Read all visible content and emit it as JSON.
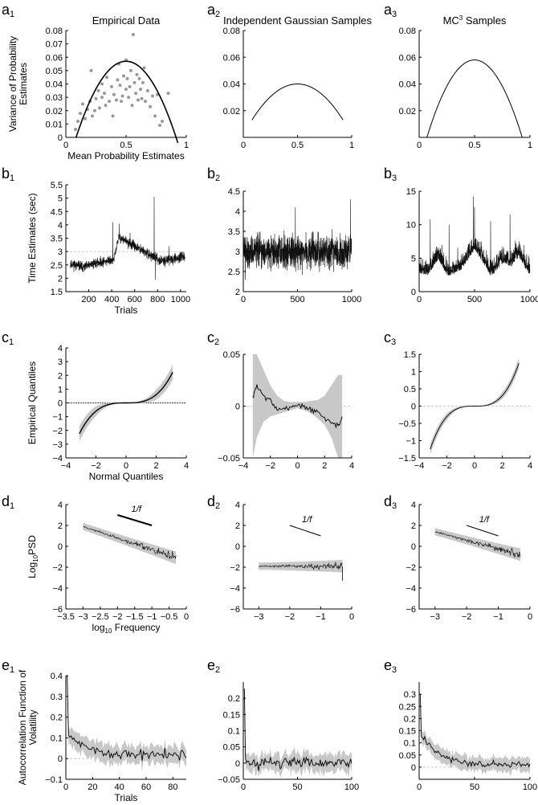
{
  "figure": "Figure panels a1-e3",
  "chart_data": [
    {
      "id": "a1",
      "type": "scatter",
      "panel_letter": "a",
      "panel_index": "1",
      "title": "Empirical Data",
      "xlabel": "Mean Probability Estimates",
      "ylabel_lines": [
        "Variance of Probability",
        "Estimates"
      ],
      "xlim": [
        0,
        1
      ],
      "ylim": [
        0,
        0.08
      ],
      "xticks": [
        0,
        0.5,
        1
      ],
      "xtick_labels": [
        "0",
        "0.5",
        "1"
      ],
      "yticks": [
        0,
        0.01,
        0.02,
        0.03,
        0.04,
        0.05,
        0.06,
        0.07,
        0.08
      ],
      "ytick_labels": [
        "0",
        "0.01",
        "0.02",
        "0.03",
        "0.04",
        "0.05",
        "0.06",
        "0.07",
        "0.08"
      ],
      "points": [
        [
          0.08,
          0.006
        ],
        [
          0.1,
          0.012
        ],
        [
          0.12,
          0.018
        ],
        [
          0.14,
          0.025
        ],
        [
          0.16,
          0.014
        ],
        [
          0.18,
          0.021
        ],
        [
          0.2,
          0.027
        ],
        [
          0.21,
          0.05
        ],
        [
          0.22,
          0.016
        ],
        [
          0.24,
          0.02
        ],
        [
          0.25,
          0.029
        ],
        [
          0.27,
          0.035
        ],
        [
          0.28,
          0.022
        ],
        [
          0.3,
          0.03
        ],
        [
          0.3,
          0.04
        ],
        [
          0.32,
          0.033
        ],
        [
          0.33,
          0.024
        ],
        [
          0.34,
          0.045
        ],
        [
          0.36,
          0.027
        ],
        [
          0.38,
          0.038
        ],
        [
          0.39,
          0.016
        ],
        [
          0.4,
          0.032
        ],
        [
          0.42,
          0.028
        ],
        [
          0.43,
          0.043
        ],
        [
          0.44,
          0.055
        ],
        [
          0.45,
          0.039
        ],
        [
          0.46,
          0.027
        ],
        [
          0.47,
          0.031
        ],
        [
          0.48,
          0.046
        ],
        [
          0.5,
          0.036
        ],
        [
          0.5,
          0.058
        ],
        [
          0.51,
          0.044
        ],
        [
          0.52,
          0.03
        ],
        [
          0.53,
          0.038
        ],
        [
          0.54,
          0.05
        ],
        [
          0.55,
          0.024
        ],
        [
          0.56,
          0.077
        ],
        [
          0.57,
          0.041
        ],
        [
          0.58,
          0.033
        ],
        [
          0.59,
          0.047
        ],
        [
          0.6,
          0.028
        ],
        [
          0.61,
          0.044
        ],
        [
          0.62,
          0.036
        ],
        [
          0.63,
          0.029
        ],
        [
          0.64,
          0.041
        ],
        [
          0.65,
          0.052
        ],
        [
          0.66,
          0.027
        ],
        [
          0.68,
          0.035
        ],
        [
          0.7,
          0.023
        ],
        [
          0.72,
          0.031
        ],
        [
          0.74,
          0.016
        ],
        [
          0.76,
          0.032
        ],
        [
          0.78,
          0.009
        ],
        [
          0.8,
          0.012
        ],
        [
          0.85,
          0.033
        ]
      ],
      "curve": {
        "kind": "parabola",
        "x0": 0.085,
        "x1": 0.93,
        "peak_x": 0.5,
        "peak_y": 0.057
      }
    },
    {
      "id": "a2",
      "type": "line",
      "panel_letter": "a",
      "panel_index": "2",
      "title": "Independent Gaussian Samples",
      "xlim": [
        0,
        1
      ],
      "ylim": [
        0,
        0.08
      ],
      "xticks": [
        0,
        0.5,
        1
      ],
      "xtick_labels": [
        "0",
        "0.5",
        "1"
      ],
      "yticks": [
        0.02,
        0.04,
        0.06,
        0.08
      ],
      "ytick_labels": [
        "0.02",
        "0.04",
        "0.06",
        "0.08"
      ],
      "curve": {
        "kind": "parabola",
        "x0": 0.08,
        "x1": 0.92,
        "peak_x": 0.5,
        "peak_y": 0.04,
        "end_y": 0.013
      }
    },
    {
      "id": "a3",
      "type": "line",
      "panel_letter": "a",
      "panel_index": "3",
      "title_parts": [
        "MC",
        "3",
        " Samples"
      ],
      "xlim": [
        0,
        1
      ],
      "ylim": [
        0,
        0.08
      ],
      "xticks": [
        0,
        0.5,
        1
      ],
      "xtick_labels": [
        "0",
        "0.5",
        "1"
      ],
      "yticks": [
        0.02,
        0.04,
        0.06,
        0.08
      ],
      "ytick_labels": [
        "0.02",
        "0.04",
        "0.06",
        "0.08"
      ],
      "curve": {
        "kind": "parabola",
        "x0": 0.07,
        "x1": 0.93,
        "peak_x": 0.5,
        "peak_y": 0.058,
        "end_y": 0.0
      }
    },
    {
      "id": "b1",
      "type": "line",
      "panel_letter": "b",
      "panel_index": "1",
      "xlabel": "Trials",
      "ylabel": "Time Estimates (sec)",
      "xlim": [
        0,
        1050
      ],
      "ylim": [
        1.5,
        5.5
      ],
      "xticks": [
        200,
        400,
        600,
        800,
        1000
      ],
      "xtick_labels": [
        "200",
        "400",
        "600",
        "800",
        "1000"
      ],
      "yticks": [
        1.5,
        2,
        2.5,
        3,
        3.5,
        4,
        4.5,
        5,
        5.5
      ],
      "ytick_labels": [
        "1.5",
        "2",
        "2.5",
        "3",
        "3.5",
        "4",
        "4.5",
        "5",
        "5.5"
      ],
      "series": {
        "n": 1000,
        "segments": [
          [
            0,
            2.55
          ],
          [
            120,
            2.4
          ],
          [
            200,
            2.55
          ],
          [
            380,
            2.7
          ],
          [
            420,
            3.55
          ],
          [
            520,
            3.3
          ],
          [
            600,
            3.1
          ],
          [
            700,
            2.85
          ],
          [
            800,
            2.65
          ],
          [
            1000,
            2.8
          ]
        ],
        "noise": 0.13,
        "seed": 11,
        "spikes": [
          [
            410,
            4.1
          ],
          [
            465,
            4.05
          ],
          [
            560,
            3.7
          ],
          [
            770,
            5.05
          ],
          [
            780,
            1.95
          ],
          [
            900,
            3.2
          ]
        ]
      },
      "reference_line": 3.0
    },
    {
      "id": "b2",
      "type": "line",
      "panel_letter": "b",
      "panel_index": "2",
      "xlim": [
        0,
        1000
      ],
      "ylim": [
        2,
        4.5
      ],
      "xticks": [
        0,
        500,
        1000
      ],
      "xtick_labels": [
        "0",
        "500",
        "1000"
      ],
      "yticks": [
        2,
        2.5,
        3,
        3.5,
        4,
        4.5
      ],
      "ytick_labels": [
        "2",
        "2.5",
        "3",
        "3.5",
        "4",
        "4.5"
      ],
      "series": {
        "n": 1000,
        "segments": [
          [
            0,
            3.0
          ],
          [
            1000,
            3.0
          ]
        ],
        "noise": 0.3,
        "seed": 22,
        "spikes": [
          [
            480,
            4.1
          ],
          [
            990,
            4.3
          ],
          [
            20,
            2.3
          ]
        ]
      }
    },
    {
      "id": "b3",
      "type": "line",
      "panel_letter": "b",
      "panel_index": "3",
      "xlim": [
        0,
        1000
      ],
      "ylim": [
        0,
        15
      ],
      "xticks": [
        0,
        500,
        1000
      ],
      "xtick_labels": [
        "0",
        "500",
        "1000"
      ],
      "yticks": [
        0,
        5,
        10,
        15
      ],
      "ytick_labels": [
        "0",
        "5",
        "10",
        "15"
      ],
      "series": {
        "n": 1000,
        "segments": [
          [
            0,
            3.5
          ],
          [
            80,
            3.2
          ],
          [
            170,
            5.5
          ],
          [
            260,
            3.0
          ],
          [
            380,
            4.0
          ],
          [
            500,
            7.0
          ],
          [
            560,
            5.5
          ],
          [
            650,
            3.0
          ],
          [
            750,
            5.0
          ],
          [
            830,
            4.5
          ],
          [
            900,
            6.0
          ],
          [
            1000,
            3.0
          ]
        ],
        "noise": 1.3,
        "seed": 33,
        "spikes": [
          [
            490,
            14.2
          ],
          [
            500,
            12.6
          ],
          [
            100,
            10.8
          ],
          [
            820,
            11.5
          ],
          [
            270,
            10.0
          ],
          [
            645,
            10.5
          ]
        ]
      }
    },
    {
      "id": "c1",
      "type": "area",
      "panel_letter": "c",
      "panel_index": "1",
      "xlabel": "Normal Quantiles",
      "ylabel": "Empirical Quantiles",
      "xlim": [
        -4,
        4
      ],
      "ylim": [
        -4,
        4
      ],
      "xticks": [
        -4,
        -2,
        0,
        2,
        4
      ],
      "xtick_labels": [
        "−4",
        "−2",
        "0",
        "2",
        "4"
      ],
      "yticks": [
        -4,
        -3,
        -2,
        -1,
        0,
        1,
        2,
        3,
        4
      ],
      "ytick_labels": [
        "−4",
        "−3",
        "−2",
        "−1",
        "0",
        "1",
        "2",
        "3",
        "4"
      ],
      "curve": {
        "kind": "cubic",
        "x0": -3.1,
        "x1": 3.1,
        "a": 0.075,
        "band": 0.45
      },
      "reference_line": 0
    },
    {
      "id": "c2",
      "type": "area",
      "panel_letter": "c",
      "panel_index": "2",
      "xlim": [
        -4,
        4
      ],
      "ylim": [
        -0.05,
        0.05
      ],
      "xticks": [
        -4,
        -2,
        0,
        2,
        4
      ],
      "xtick_labels": [
        "−4",
        "−2",
        "0",
        "2",
        "4"
      ],
      "yticks": [
        -0.05,
        0,
        0.05
      ],
      "ytick_labels": [
        "−0.05",
        "0",
        "0.05"
      ],
      "curve": {
        "kind": "points",
        "x": [
          -3.3,
          -3.0,
          -2.5,
          -2.0,
          -1.5,
          -1.0,
          -0.5,
          0,
          0.5,
          1.0,
          1.5,
          2.0,
          2.5,
          3.0,
          3.3
        ],
        "y": [
          0.008,
          0.02,
          0.01,
          0.005,
          -0.003,
          -0.004,
          0.0,
          0.001,
          0.0,
          -0.004,
          -0.006,
          -0.012,
          -0.015,
          -0.02,
          -0.01
        ],
        "band_lo": [
          -0.05,
          -0.03,
          -0.015,
          -0.01,
          -0.008,
          -0.006,
          -0.004,
          -0.002,
          -0.004,
          -0.007,
          -0.012,
          -0.018,
          -0.03,
          -0.05,
          -0.05
        ],
        "band_hi": [
          0.05,
          0.05,
          0.035,
          0.02,
          0.01,
          0.005,
          0.004,
          0.004,
          0.004,
          0.005,
          0.006,
          0.01,
          0.02,
          0.03,
          0.03
        ]
      },
      "reference_line": 0
    },
    {
      "id": "c3",
      "type": "area",
      "panel_letter": "c",
      "panel_index": "3",
      "xlim": [
        -4,
        4
      ],
      "ylim": [
        -1.5,
        1.5
      ],
      "xticks": [
        -4,
        -2,
        0,
        2,
        4
      ],
      "xtick_labels": [
        "−4",
        "−2",
        "0",
        "2",
        "4"
      ],
      "yticks": [
        -1.5,
        -1,
        -0.5,
        0,
        0.5,
        1,
        1.5
      ],
      "ytick_labels": [
        "−1.5",
        "−1",
        "−0.5",
        "0",
        "0.5",
        "1",
        "1.5"
      ],
      "curve": {
        "kind": "cubic",
        "x0": -3.2,
        "x1": 3.2,
        "a": 0.038,
        "band": 0.12
      },
      "reference_line": 0
    },
    {
      "id": "d1",
      "type": "area",
      "panel_letter": "d",
      "panel_index": "1",
      "xlabel": "log10 Frequency",
      "xlabel_parts": [
        "log",
        "10",
        " Frequency"
      ],
      "ylabel_parts": [
        "Log",
        "10",
        "PSD"
      ],
      "xlim": [
        -3.5,
        0
      ],
      "ylim": [
        -6,
        4
      ],
      "xticks": [
        -3.5,
        -3,
        -2.5,
        -2,
        -1.5,
        -1,
        -0.5,
        0
      ],
      "xtick_labels": [
        "−3.5",
        "−3",
        "−2.5",
        "−2",
        "−1.5",
        "−1",
        "−0.5",
        "0"
      ],
      "yticks": [
        -6,
        -4,
        -2,
        0,
        2,
        4
      ],
      "ytick_labels": [
        "−6",
        "−4",
        "−2",
        "0",
        "2",
        "4"
      ],
      "series": {
        "x0": -3.0,
        "x1": -0.3,
        "y0": 1.9,
        "y1": -1.1,
        "noise": 0.3,
        "seed": 44
      },
      "slope_label": "1/f",
      "slope_line": [
        [
          -2.0,
          3.0
        ],
        [
          -1.0,
          2.0
        ]
      ]
    },
    {
      "id": "d2",
      "type": "area",
      "panel_letter": "d",
      "panel_index": "2",
      "xlim": [
        -3.5,
        0
      ],
      "ylim": [
        -6,
        4
      ],
      "xticks": [
        -3,
        -2,
        -1,
        0
      ],
      "xtick_labels": [
        "−3",
        "−2",
        "−1",
        "0"
      ],
      "yticks": [
        -6,
        -4,
        -2,
        0,
        2,
        4
      ],
      "ytick_labels": [
        "−6",
        "−4",
        "−2",
        "0",
        "2",
        "4"
      ],
      "series": {
        "x0": -3.0,
        "x1": -0.3,
        "y0": -1.9,
        "y1": -1.9,
        "noise": 0.3,
        "seed": 55
      },
      "slope_label": "1/f",
      "slope_line": [
        [
          -2.0,
          2.0
        ],
        [
          -1.0,
          1.0
        ]
      ]
    },
    {
      "id": "d3",
      "type": "area",
      "panel_letter": "d",
      "panel_index": "3",
      "xlim": [
        -3.5,
        0
      ],
      "ylim": [
        -6,
        4
      ],
      "xticks": [
        -3,
        -2,
        -1,
        0
      ],
      "xtick_labels": [
        "−3",
        "−2",
        "−1",
        "0"
      ],
      "yticks": [
        -6,
        -4,
        -2,
        0,
        2,
        4
      ],
      "ytick_labels": [
        "−6",
        "−4",
        "−2",
        "0",
        "2",
        "4"
      ],
      "series": {
        "x0": -3.0,
        "x1": -0.3,
        "y0": 1.4,
        "y1": -0.8,
        "noise": 0.3,
        "seed": 66
      },
      "slope_label": "1/f",
      "slope_line": [
        [
          -2.0,
          2.0
        ],
        [
          -1.0,
          1.0
        ]
      ]
    },
    {
      "id": "e1",
      "type": "area",
      "panel_letter": "e",
      "panel_index": "1",
      "xlabel": "Trials",
      "ylabel_lines": [
        "Autocorrelation Function of",
        "Volatility"
      ],
      "xlim": [
        0,
        90
      ],
      "ylim": [
        -0.1,
        0.4
      ],
      "xticks": [
        0,
        20,
        40,
        60,
        80
      ],
      "xtick_labels": [
        "0",
        "20",
        "40",
        "60",
        "80"
      ],
      "yticks": [
        -0.1,
        0,
        0.1,
        0.2,
        0.3,
        0.4
      ],
      "ytick_labels": [
        "−0.1",
        "0",
        "0.1",
        "0.2",
        "0.3",
        "0.4"
      ],
      "series": {
        "n": 90,
        "first": 0.4,
        "second": 0.12,
        "decay": 0.08,
        "floor": 0.015,
        "noise": 0.018,
        "band": 0.045,
        "seed": 77
      },
      "reference_line": 0
    },
    {
      "id": "e2",
      "type": "area",
      "panel_letter": "e",
      "panel_index": "2",
      "xlim": [
        0,
        100
      ],
      "ylim": [
        -0.05,
        0.25
      ],
      "xticks": [
        0,
        50,
        100
      ],
      "xtick_labels": [
        "0",
        "50",
        "100"
      ],
      "yticks": [
        -0.05,
        0,
        0.05,
        0.1,
        0.15,
        0.2
      ],
      "ytick_labels": [
        "−0.05",
        "0",
        "0.05",
        "0.1",
        "0.15",
        "0.2"
      ],
      "series": {
        "n": 100,
        "first": 0.23,
        "second": 0.02,
        "decay": 0.5,
        "floor": 0.0,
        "noise": 0.012,
        "band": 0.028,
        "seed": 88
      },
      "reference_line": 0
    },
    {
      "id": "e3",
      "type": "area",
      "panel_letter": "e",
      "panel_index": "3",
      "xlim": [
        0,
        100
      ],
      "ylim": [
        -0.05,
        0.35
      ],
      "xticks": [
        0,
        50,
        100
      ],
      "xtick_labels": [
        "0",
        "50",
        "100"
      ],
      "yticks": [
        0,
        0.05,
        0.1,
        0.15,
        0.2,
        0.25,
        0.3
      ],
      "ytick_labels": [
        "0",
        "0.05",
        "0.1",
        "0.15",
        "0.2",
        "0.25",
        "0.3"
      ],
      "series": {
        "n": 100,
        "first": 0.3,
        "second": 0.13,
        "decay": 0.06,
        "floor": 0.01,
        "noise": 0.01,
        "band": 0.03,
        "seed": 99
      },
      "reference_line": 0
    }
  ]
}
